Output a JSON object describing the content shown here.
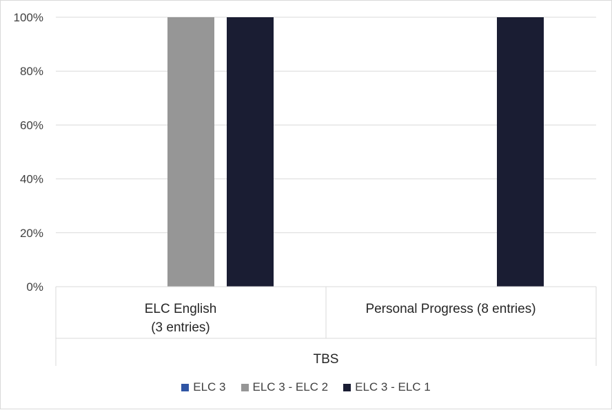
{
  "chart_data": {
    "type": "bar",
    "categories": [
      "ELC English\n(3 entries)",
      "Personal Progress (8 entries)"
    ],
    "group_label": "TBS",
    "series": [
      {
        "name": "ELC 3",
        "color": "#2f55a4",
        "values": [
          0,
          0
        ]
      },
      {
        "name": "ELC 3 - ELC 2",
        "color": "#969696",
        "values": [
          100,
          0
        ]
      },
      {
        "name": "ELC 3 - ELC 1",
        "color": "#1a1d33",
        "values": [
          100,
          100
        ]
      }
    ],
    "ylim": [
      0,
      100
    ],
    "yticks": [
      "0%",
      "20%",
      "40%",
      "60%",
      "80%",
      "100%"
    ],
    "grid": true,
    "legend_position": "bottom"
  }
}
